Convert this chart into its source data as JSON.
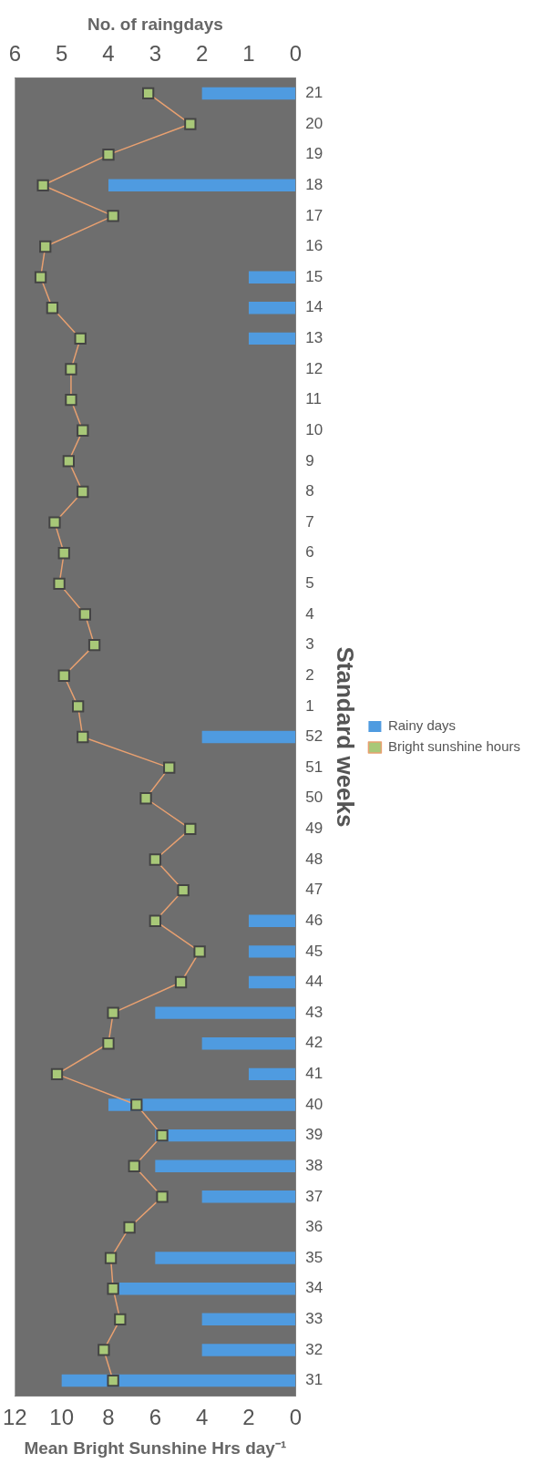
{
  "chart_data": {
    "type": "bar",
    "orientation": "horizontal",
    "xlabel": "Mean Bright Sunshine Hrs day⁻¹",
    "x2label": "No. of raingdays",
    "ylabel": "Standard weeks",
    "categories": [
      "21",
      "20",
      "19",
      "18",
      "17",
      "16",
      "15",
      "14",
      "13",
      "12",
      "11",
      "10",
      "9",
      "8",
      "7",
      "6",
      "5",
      "4",
      "3",
      "2",
      "1",
      "52",
      "51",
      "50",
      "49",
      "48",
      "47",
      "46",
      "45",
      "44",
      "43",
      "42",
      "41",
      "40",
      "39",
      "38",
      "37",
      "36",
      "35",
      "34",
      "33",
      "32",
      "31"
    ],
    "series": [
      {
        "name": "Rainy days",
        "axis": "x2",
        "color": "#4f9be0",
        "values": [
          2,
          0,
          0,
          4,
          0,
          0,
          1,
          1,
          1,
          0,
          0,
          0,
          0,
          0,
          0,
          0,
          0,
          0,
          0,
          0,
          0,
          2,
          0,
          0,
          0,
          0,
          0,
          1,
          1,
          1,
          3,
          2,
          1,
          4,
          3,
          3,
          2,
          0,
          3,
          3.8,
          2,
          2,
          5
        ]
      },
      {
        "name": "Bright sunshine hours",
        "type": "line",
        "color": "#e8a070",
        "marker": "square",
        "values": [
          6.3,
          4.5,
          8.0,
          10.8,
          7.8,
          10.7,
          10.9,
          10.4,
          9.2,
          9.6,
          9.6,
          9.1,
          9.7,
          9.1,
          10.3,
          9.9,
          10.1,
          9.0,
          8.6,
          9.9,
          9.3,
          9.1,
          5.4,
          6.4,
          4.5,
          6.0,
          4.8,
          6.0,
          4.1,
          4.9,
          7.8,
          8.0,
          10.2,
          6.8,
          5.7,
          6.9,
          5.7,
          7.1,
          7.9,
          7.8,
          7.5,
          8.2,
          7.8
        ]
      }
    ],
    "xlim": [
      12,
      0
    ],
    "xticks": [
      12,
      10,
      8,
      6,
      4,
      2,
      0
    ],
    "x2lim": [
      6,
      0
    ],
    "x2ticks": [
      6,
      5,
      4,
      3,
      2,
      1,
      0
    ],
    "grid": false,
    "legend": "right"
  }
}
